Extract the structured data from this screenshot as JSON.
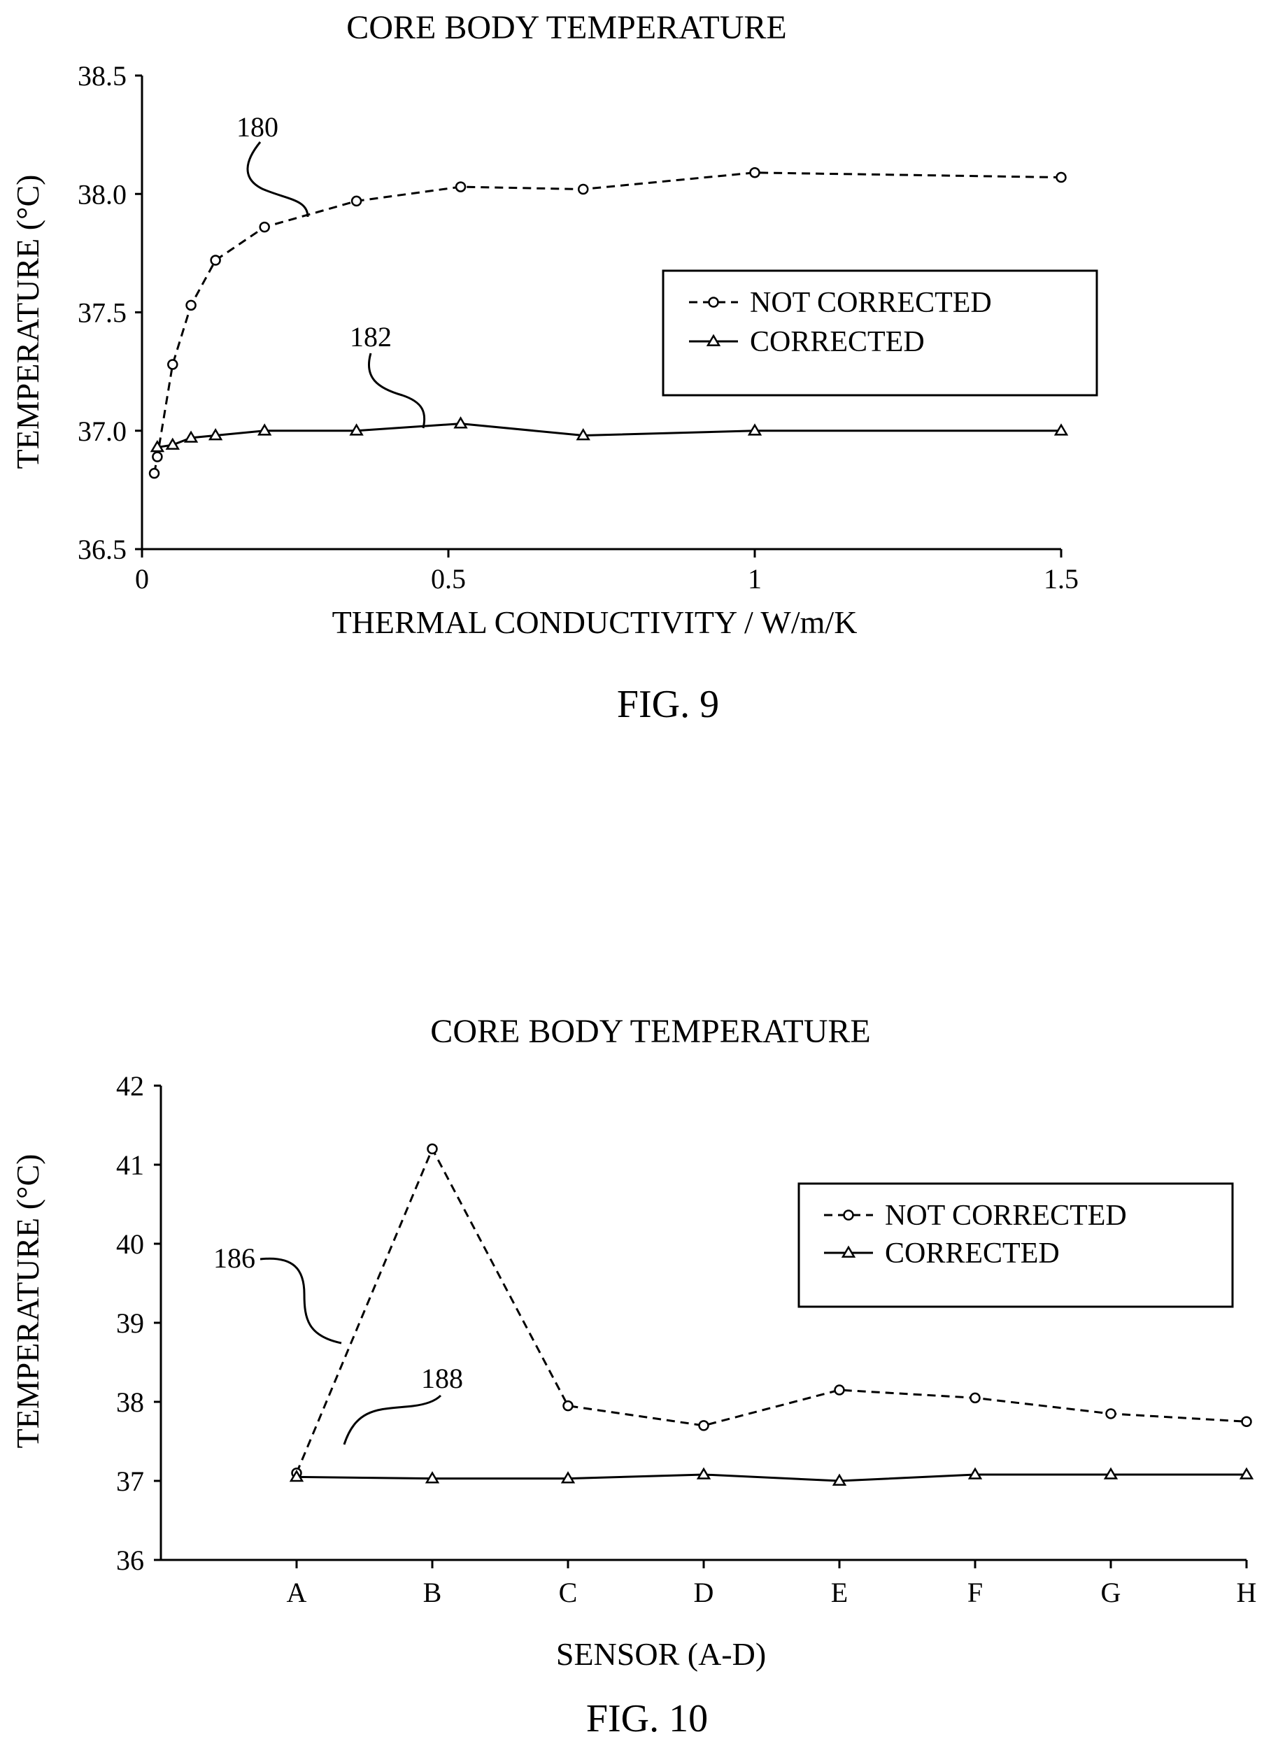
{
  "chart_data": [
    {
      "type": "line",
      "title": "CORE BODY TEMPERATURE",
      "xlabel": "THERMAL CONDUCTIVITY / W/m/K",
      "ylabel": "TEMPERATURE (°C)",
      "figure_label": "FIG. 9",
      "xlim": [
        0,
        1.5
      ],
      "ylim": [
        36.5,
        38.5
      ],
      "x_ticks": [
        "0",
        "0.5",
        "1",
        "1.5"
      ],
      "y_ticks": [
        "36.5",
        "37.0",
        "37.5",
        "38.0",
        "38.5"
      ],
      "legend_position": "right",
      "reference_labels": [
        "180",
        "182"
      ],
      "series": [
        {
          "name": "NOT CORRECTED",
          "style": "dashed",
          "marker": "circle",
          "x": [
            0.02,
            0.025,
            0.05,
            0.08,
            0.12,
            0.2,
            0.35,
            0.52,
            0.72,
            1.0,
            1.5
          ],
          "values": [
            36.82,
            36.89,
            37.28,
            37.53,
            37.72,
            37.86,
            37.97,
            38.03,
            38.02,
            38.09,
            38.07
          ]
        },
        {
          "name": "CORRECTED",
          "style": "solid",
          "marker": "triangle",
          "x": [
            0.025,
            0.05,
            0.08,
            0.12,
            0.2,
            0.35,
            0.52,
            0.72,
            1.0,
            1.5
          ],
          "values": [
            36.93,
            36.94,
            36.97,
            36.98,
            37.0,
            37.0,
            37.03,
            36.98,
            37.0,
            37.0
          ]
        }
      ]
    },
    {
      "type": "line",
      "title": "CORE BODY TEMPERATURE",
      "xlabel": "SENSOR (A-D)",
      "ylabel": "TEMPERATURE (°C)",
      "figure_label": "FIG. 10",
      "ylim": [
        36,
        42
      ],
      "categories": [
        "A",
        "B",
        "C",
        "D",
        "E",
        "F",
        "G",
        "H"
      ],
      "y_ticks": [
        "36",
        "37",
        "38",
        "39",
        "40",
        "41",
        "42"
      ],
      "legend_position": "right",
      "reference_labels": [
        "186",
        "188"
      ],
      "series": [
        {
          "name": "NOT CORRECTED",
          "style": "dashed",
          "marker": "circle",
          "values": [
            37.1,
            41.2,
            37.95,
            37.7,
            38.15,
            38.05,
            37.85,
            37.75
          ]
        },
        {
          "name": "CORRECTED",
          "style": "solid",
          "marker": "triangle",
          "values": [
            37.05,
            37.03,
            37.03,
            37.08,
            37.0,
            37.08,
            37.08,
            37.08
          ]
        }
      ]
    }
  ]
}
